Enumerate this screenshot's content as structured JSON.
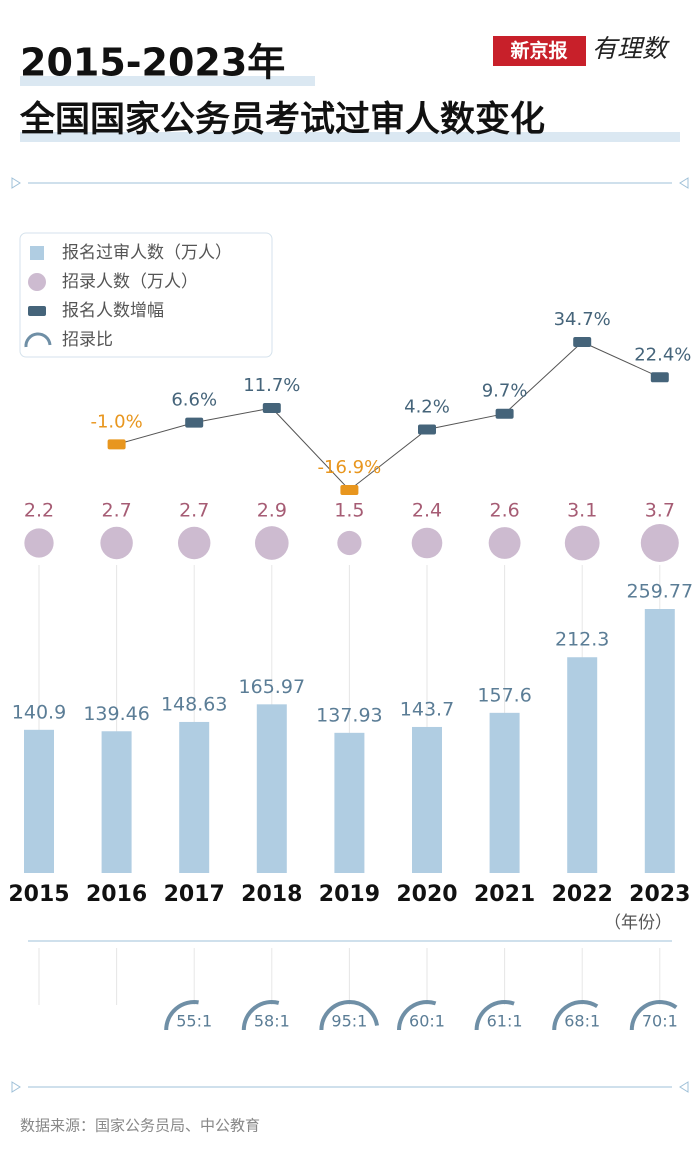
{
  "chart_data": {
    "type": "bar",
    "title": [
      "2015-2023年",
      "全国国家公务员考试过审人数变化"
    ],
    "brand": [
      "新京报",
      "有理数"
    ],
    "source": "数据来源：国家公务员局、中公教育",
    "x_unit": "（年份）",
    "categories": [
      "2015",
      "2016",
      "2017",
      "2018",
      "2019",
      "2020",
      "2021",
      "2022",
      "2023"
    ],
    "series": [
      {
        "name": "报名过审人数（万人）",
        "color": "#b0cde2",
        "values": [
          140.9,
          139.46,
          148.63,
          165.97,
          137.93,
          143.7,
          157.6,
          212.3,
          259.77
        ]
      },
      {
        "name": "招录人数（万人）",
        "color": "#cdbbd0",
        "values": [
          2.2,
          2.7,
          2.7,
          2.9,
          1.5,
          2.4,
          2.6,
          3.1,
          3.7
        ]
      },
      {
        "name": "报名人数增幅",
        "color": "#45647a",
        "negative_color": "#e8961e",
        "values": [
          null,
          -1.0,
          6.6,
          11.7,
          -16.9,
          4.2,
          9.7,
          34.7,
          22.4
        ],
        "value_labels": [
          null,
          "-1.0%",
          "6.6%",
          "11.7%",
          "-16.9%",
          "4.2%",
          "9.7%",
          "34.7%",
          "22.4%"
        ]
      },
      {
        "name": "招录比",
        "color": "#6f8fa6",
        "values": [
          null,
          null,
          55,
          58,
          95,
          60,
          61,
          68,
          70
        ],
        "value_labels": [
          null,
          null,
          "55:1",
          "58:1",
          "95:1",
          "60:1",
          "61:1",
          "68:1",
          "70:1"
        ]
      }
    ]
  }
}
